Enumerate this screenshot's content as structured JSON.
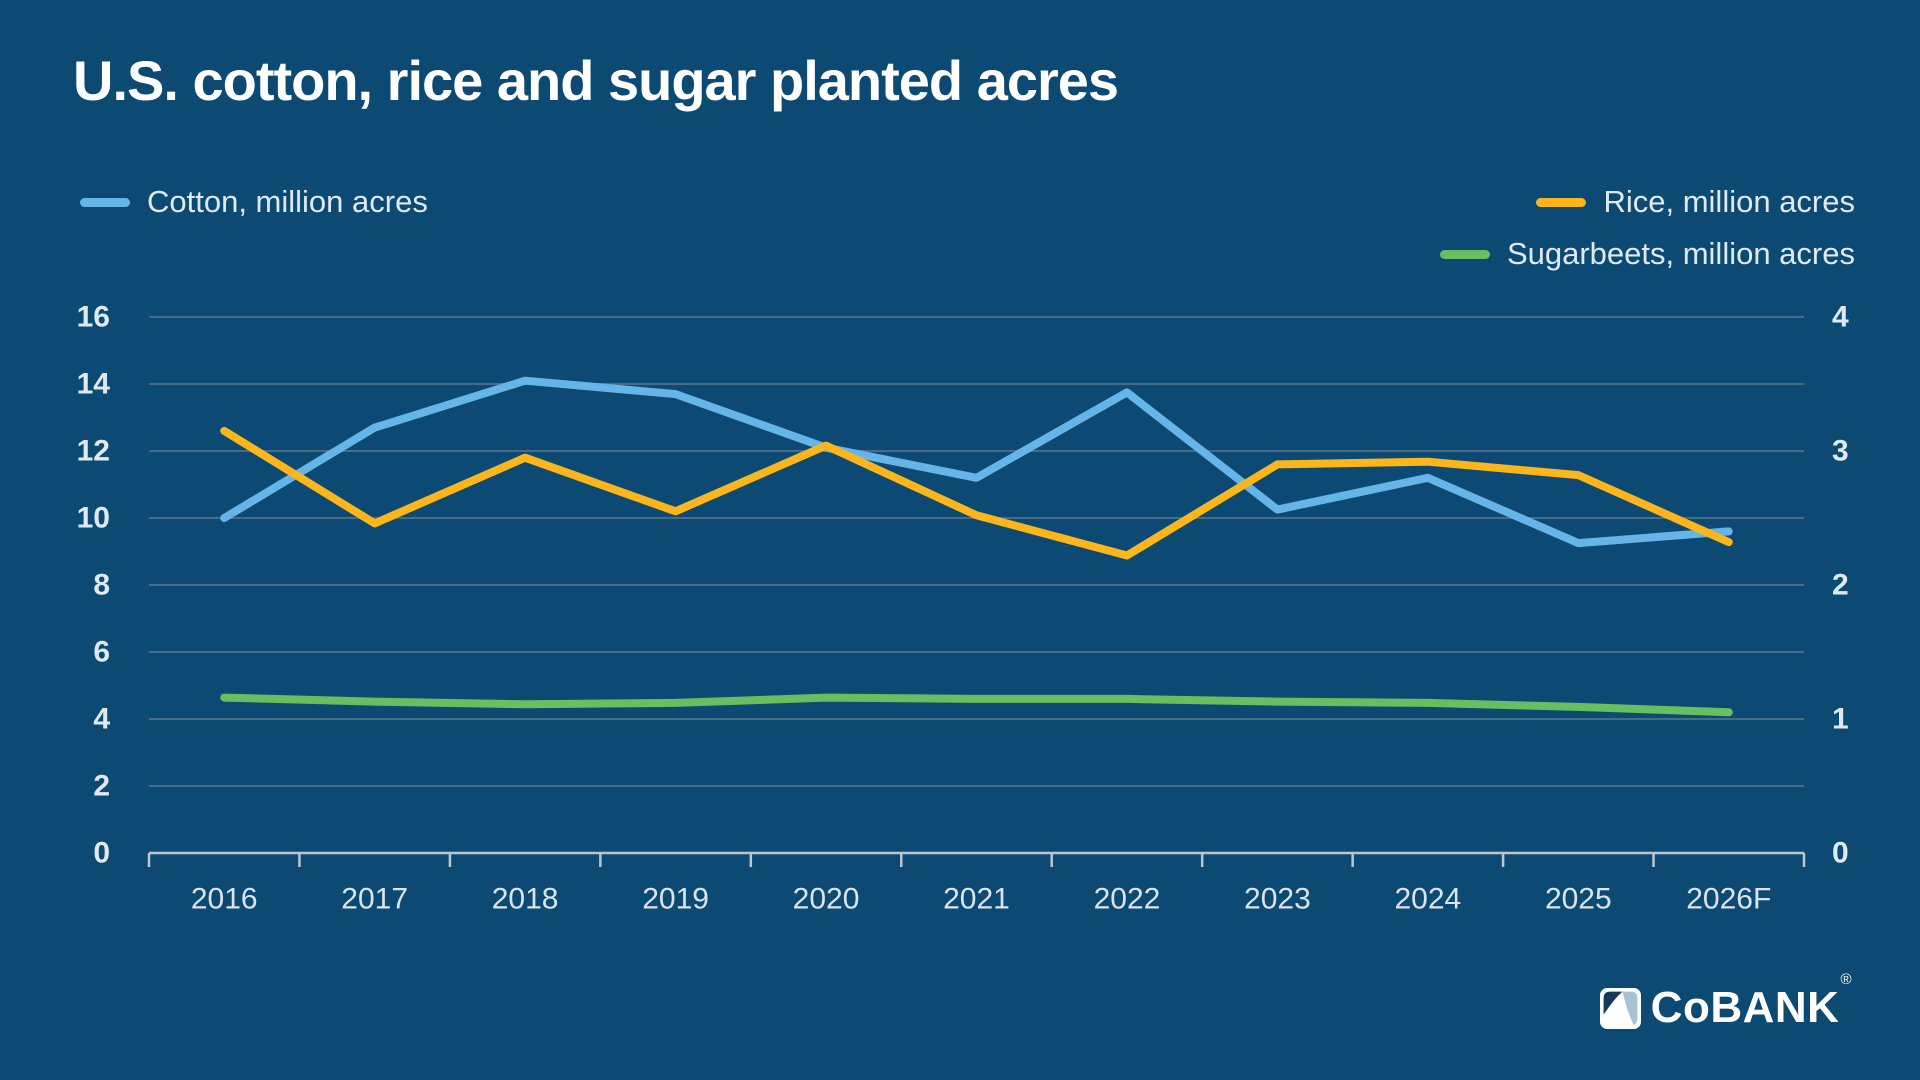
{
  "title": "U.S. cotton, rice and sugar planted acres",
  "legend": {
    "left": [
      {
        "label": "Cotton, million acres",
        "color": "#66b5e8"
      }
    ],
    "right": [
      {
        "label": "Rice, million acres",
        "color": "#fbb61b"
      },
      {
        "label": "Sugarbeets, million acres",
        "color": "#67bf60"
      }
    ]
  },
  "brand": {
    "text": "CoBANK",
    "registered": "®"
  },
  "colors": {
    "background": "#0d4a73",
    "grid": "#4a6b86",
    "axis": "#b9c7d3",
    "tick_text": "#dfe9f1",
    "year_text": "#d9e4ec",
    "title_text": "#ffffff",
    "cotton": "#66b5e8",
    "rice": "#fbb61b",
    "sugarbeets": "#67bf60",
    "logo_light_blue": "#a9c2d3",
    "logo_navy": "#16395a"
  },
  "chart_data": {
    "type": "line",
    "title": "U.S. cotton, rice and sugar planted acres",
    "categories": [
      "2016",
      "2017",
      "2018",
      "2019",
      "2020",
      "2021",
      "2022",
      "2023",
      "2024",
      "2025",
      "2026F"
    ],
    "series": [
      {
        "name": "Cotton, million acres",
        "y_axis": "left",
        "color": "#66b5e8",
        "values": [
          10.0,
          12.7,
          14.1,
          13.7,
          12.1,
          11.2,
          13.75,
          10.25,
          11.2,
          9.25,
          9.6
        ]
      },
      {
        "name": "Rice, million acres",
        "y_axis": "right",
        "color": "#fbb61b",
        "values": [
          3.15,
          2.46,
          2.95,
          2.55,
          3.04,
          2.52,
          2.22,
          2.9,
          2.92,
          2.82,
          2.32
        ]
      },
      {
        "name": "Sugarbeets, million acres",
        "y_axis": "right",
        "color": "#67bf60",
        "values": [
          1.16,
          1.13,
          1.11,
          1.12,
          1.16,
          1.15,
          1.15,
          1.13,
          1.12,
          1.09,
          1.05
        ]
      }
    ],
    "left_axis": {
      "min": 0,
      "max": 16,
      "step": 2,
      "ticks": [
        0,
        2,
        4,
        6,
        8,
        10,
        12,
        14,
        16
      ]
    },
    "right_axis": {
      "min": 0,
      "max": 4,
      "step": 1,
      "ticks": [
        0,
        1,
        2,
        3,
        4
      ]
    },
    "grid": true,
    "legend_position": "top"
  }
}
